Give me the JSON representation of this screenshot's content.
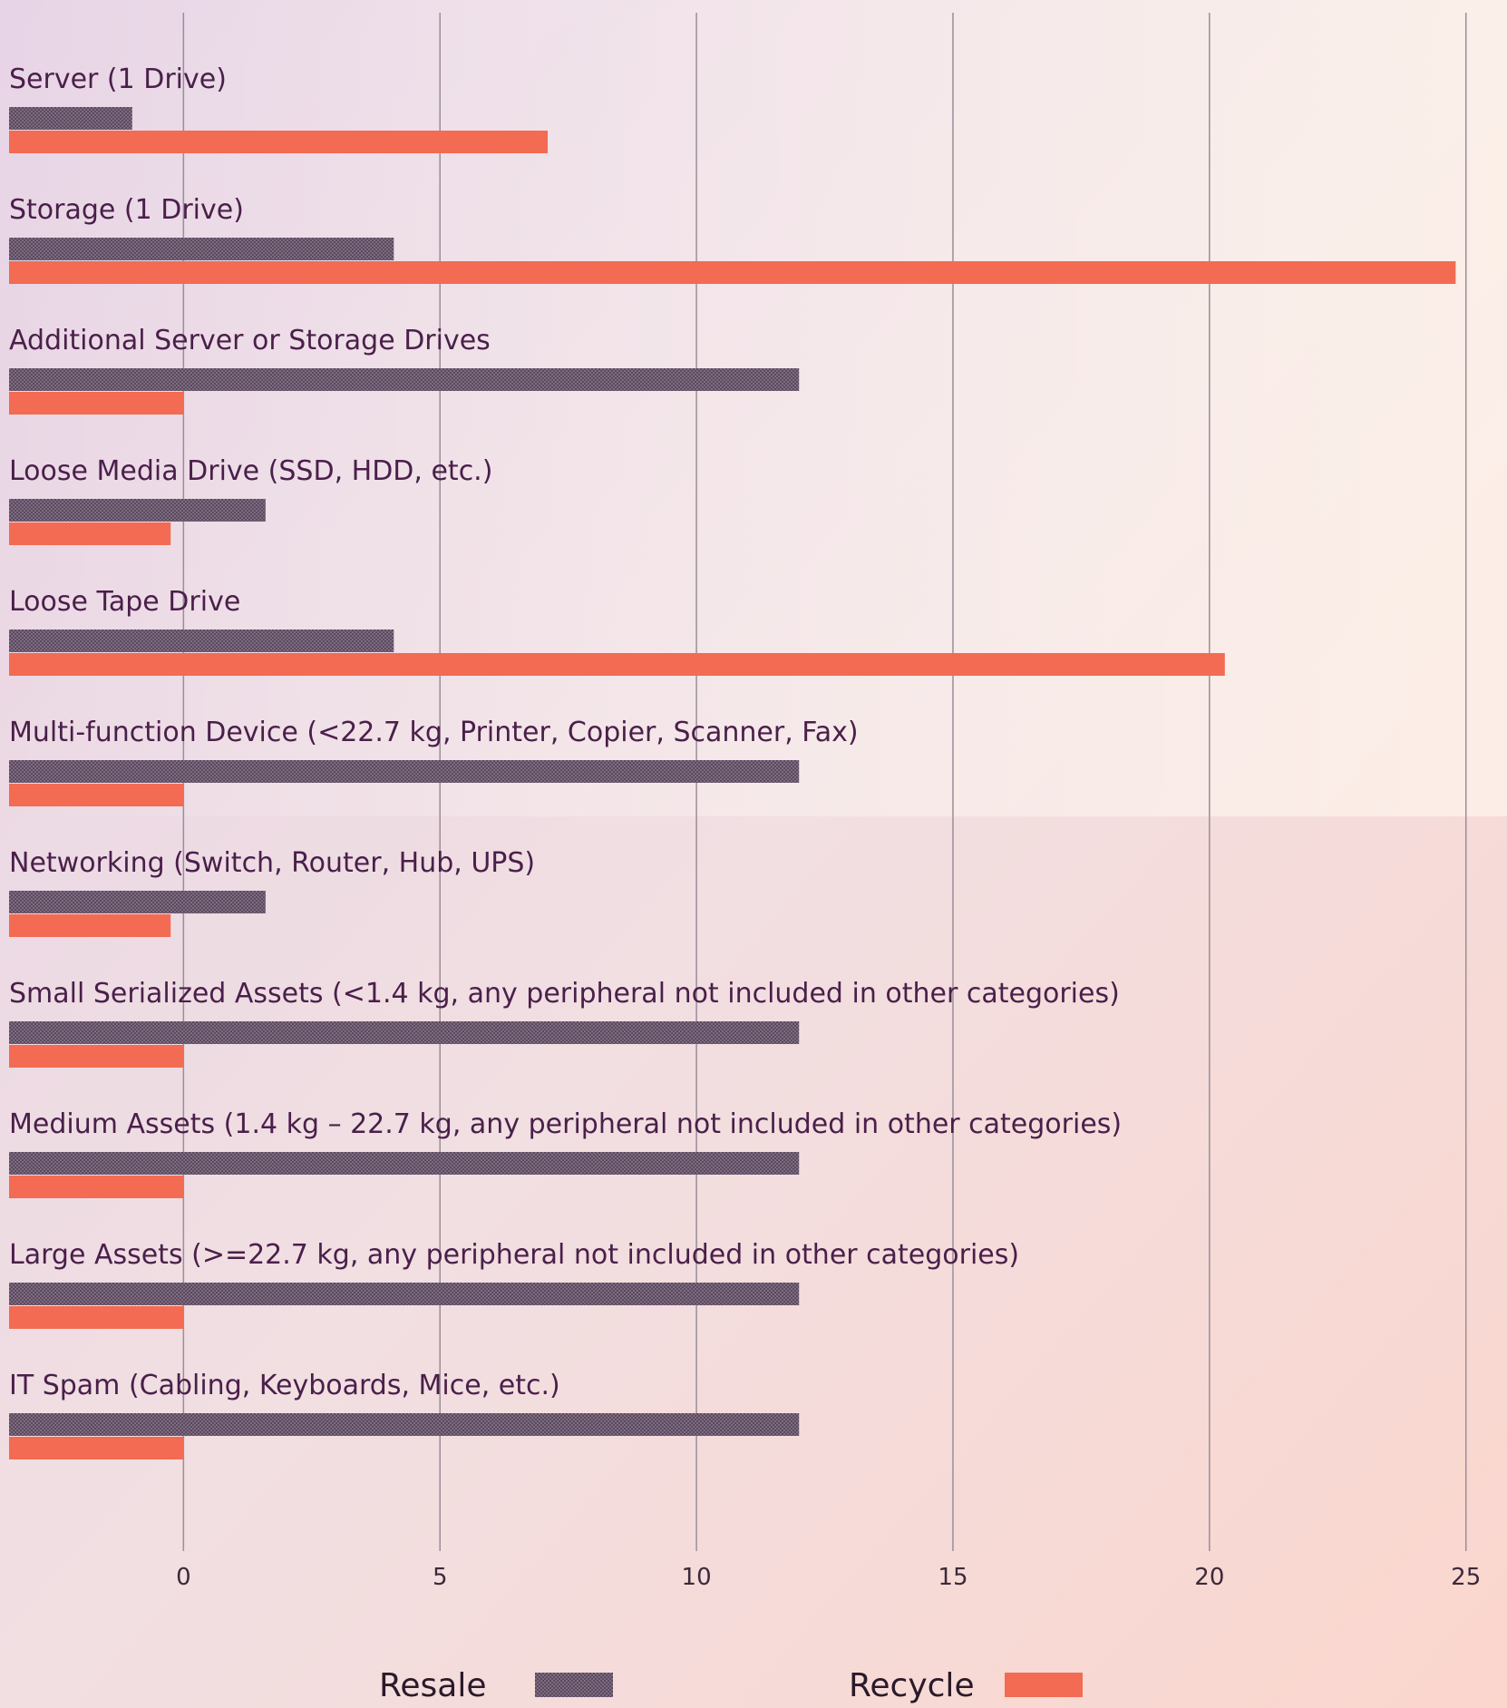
{
  "chart_data": {
    "type": "barh",
    "categories": [
      "Server (1 Drive)",
      "Storage (1 Drive)",
      "Additional Server or Storage Drives",
      "Loose Media Drive (SSD, HDD, etc.)",
      "Loose Tape Drive",
      "Multi-function Device (<22.7 kg, Printer, Copier, Scanner, Fax)",
      "Networking (Switch, Router, Hub, UPS)",
      "Small Serialized Assets (<1.4 kg, any peripheral not included in other categories)",
      "Medium Assets (1.4 kg – 22.7 kg, any peripheral not included in other categories)",
      "Large Assets (>=22.7 kg, any peripheral not included in other categories)",
      "IT Spam (Cabling, Keyboards, Mice, etc.)"
    ],
    "series": [
      {
        "name": "Resale",
        "color": "#5b4a5f",
        "values": [
          -1,
          4.1,
          12,
          1.6,
          4.1,
          12,
          1.6,
          12,
          12,
          12,
          12
        ]
      },
      {
        "name": "Recycle",
        "color": "#f26b52",
        "values": [
          7.1,
          24.8,
          0,
          -0.25,
          20.3,
          0,
          -0.25,
          0,
          0,
          0,
          0
        ]
      }
    ],
    "xlim": [
      -3.4,
      25.5
    ],
    "xticks": [
      0,
      5,
      10,
      15,
      20,
      25
    ],
    "grid": true
  }
}
